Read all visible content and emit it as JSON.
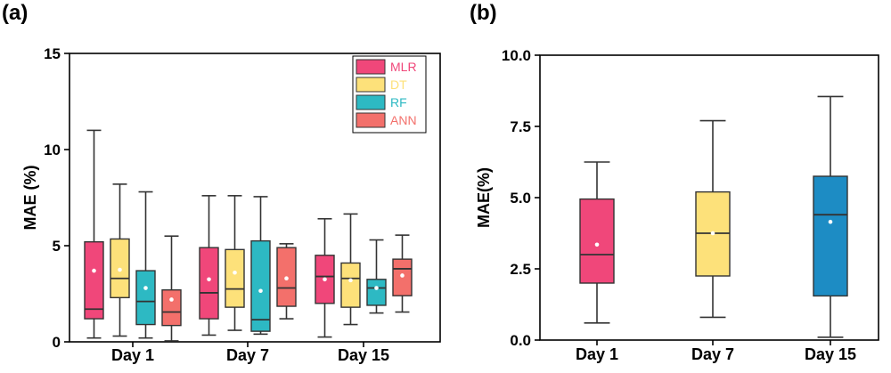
{
  "panels": [
    {
      "label": "(a)"
    },
    {
      "label": "(b)"
    }
  ],
  "chart_data": [
    {
      "type": "box",
      "panel": "(a)",
      "ylabel": "MAE  (%)",
      "xlabel": "",
      "ylim": [
        0,
        15
      ],
      "yticks": [
        0,
        5,
        10,
        15
      ],
      "categories": [
        "Day 1",
        "Day 7",
        "Day 15"
      ],
      "legend_position": "top-right",
      "series": [
        {
          "name": "MLR",
          "color": "#f0477a",
          "boxes": [
            {
              "whisker_low": 0.2,
              "q1": 1.2,
              "median": 1.7,
              "q3": 5.2,
              "whisker_high": 11.0,
              "mean": 3.7
            },
            {
              "whisker_low": 0.35,
              "q1": 1.2,
              "median": 2.55,
              "q3": 4.9,
              "whisker_high": 7.6,
              "mean": 3.25
            },
            {
              "whisker_low": 0.25,
              "q1": 2.0,
              "median": 3.4,
              "q3": 4.5,
              "whisker_high": 6.4,
              "mean": 3.25
            }
          ]
        },
        {
          "name": "DT",
          "color": "#fde17a",
          "boxes": [
            {
              "whisker_low": 0.3,
              "q1": 2.3,
              "median": 3.3,
              "q3": 5.35,
              "whisker_high": 8.2,
              "mean": 3.75
            },
            {
              "whisker_low": 0.6,
              "q1": 1.8,
              "median": 2.75,
              "q3": 4.8,
              "whisker_high": 7.6,
              "mean": 3.6
            },
            {
              "whisker_low": 0.9,
              "q1": 1.8,
              "median": 3.3,
              "q3": 4.1,
              "whisker_high": 6.65,
              "mean": 3.2
            }
          ]
        },
        {
          "name": "RF",
          "color": "#2db9c3",
          "boxes": [
            {
              "whisker_low": 0.2,
              "q1": 0.9,
              "median": 2.1,
              "q3": 3.7,
              "whisker_high": 7.8,
              "mean": 2.8
            },
            {
              "whisker_low": 0.4,
              "q1": 0.55,
              "median": 1.15,
              "q3": 5.25,
              "whisker_high": 7.55,
              "mean": 2.65
            },
            {
              "whisker_low": 1.5,
              "q1": 1.9,
              "median": 2.8,
              "q3": 3.25,
              "whisker_high": 5.3,
              "mean": 2.8
            }
          ]
        },
        {
          "name": "ANN",
          "color": "#f3706b",
          "boxes": [
            {
              "whisker_low": 0.05,
              "q1": 0.85,
              "median": 1.55,
              "q3": 2.7,
              "whisker_high": 5.5,
              "mean": 2.2
            },
            {
              "whisker_low": 1.2,
              "q1": 1.85,
              "median": 2.8,
              "q3": 4.9,
              "whisker_high": 5.1,
              "mean": 3.3
            },
            {
              "whisker_low": 1.55,
              "q1": 2.4,
              "median": 3.8,
              "q3": 4.3,
              "whisker_high": 5.55,
              "mean": 3.45
            }
          ]
        }
      ]
    },
    {
      "type": "box",
      "panel": "(b)",
      "ylabel": "MAE(%)",
      "xlabel": "",
      "ylim": [
        0,
        10
      ],
      "yticks": [
        "0.0",
        "2.5",
        "5.0",
        "7.5",
        "10.0"
      ],
      "categories": [
        "Day 1",
        "Day 7",
        "Day 15"
      ],
      "boxes": [
        {
          "color": "#f0477a",
          "whisker_low": 0.6,
          "q1": 2.0,
          "median": 3.0,
          "q3": 4.95,
          "whisker_high": 6.25,
          "mean": 3.35
        },
        {
          "color": "#fde17a",
          "whisker_low": 0.8,
          "q1": 2.25,
          "median": 3.75,
          "q3": 5.2,
          "whisker_high": 7.7,
          "mean": 3.75
        },
        {
          "color": "#1d8cc4",
          "whisker_low": 0.1,
          "q1": 1.55,
          "median": 4.4,
          "q3": 5.75,
          "whisker_high": 8.55,
          "mean": 4.15
        }
      ]
    }
  ]
}
